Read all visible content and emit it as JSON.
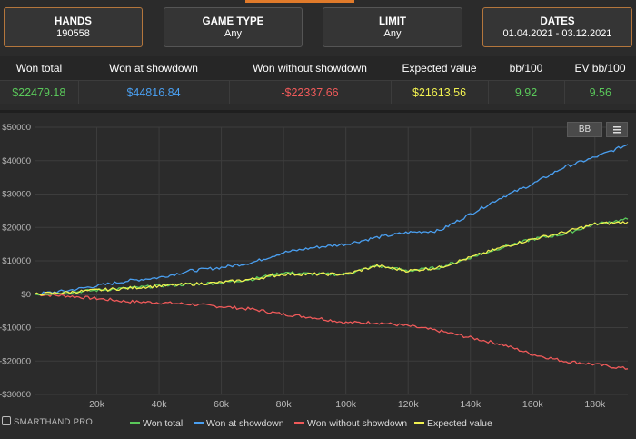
{
  "filters": [
    {
      "title": "HANDS",
      "value": "190558"
    },
    {
      "title": "GAME TYPE",
      "value": "Any"
    },
    {
      "title": "LIMIT",
      "value": "Any"
    },
    {
      "title": "DATES",
      "value": "01.04.2021 - 03.12.2021"
    }
  ],
  "stats": {
    "headers": [
      "Won total",
      "Won at showdown",
      "Won without showdown",
      "Expected value",
      "bb/100",
      "EV bb/100"
    ],
    "values": [
      "$22479.18",
      "$44816.84",
      "-$22337.66",
      "$21613.56",
      "9.92",
      "9.56"
    ],
    "colors": [
      "#5ac85a",
      "#4a9ff0",
      "#f05a5a",
      "#f0f050",
      "#5ac85a",
      "#5ac85a"
    ]
  },
  "toolbar": {
    "bb_label": "BB",
    "menu_icon": "hamburger-menu-icon"
  },
  "branding": "SMARTHAND.PRO",
  "chart_data": {
    "type": "line",
    "xlim": [
      0,
      190558
    ],
    "ylim": [
      -30000,
      50000
    ],
    "xticks": [
      20000,
      40000,
      60000,
      80000,
      100000,
      120000,
      140000,
      160000,
      180000
    ],
    "xtick_labels": [
      "20k",
      "40k",
      "60k",
      "80k",
      "100k",
      "120k",
      "140k",
      "160k",
      "180k"
    ],
    "yticks": [
      -30000,
      -20000,
      -10000,
      0,
      10000,
      20000,
      30000,
      40000,
      50000
    ],
    "ytick_labels": [
      "-$30000",
      "-$20000",
      "-$10000",
      "$0",
      "$10000",
      "$20000",
      "$30000",
      "$40000",
      "$50000"
    ],
    "x": [
      0,
      10000,
      20000,
      30000,
      40000,
      50000,
      60000,
      70000,
      80000,
      90000,
      100000,
      110000,
      120000,
      130000,
      140000,
      150000,
      160000,
      170000,
      180000,
      190558
    ],
    "series": [
      {
        "name": "Won total",
        "color": "#5ac85a",
        "values": [
          0,
          500,
          1200,
          1800,
          2500,
          3000,
          3500,
          4500,
          6500,
          6000,
          6000,
          8500,
          7000,
          8000,
          11000,
          14000,
          16500,
          18000,
          21000,
          22479
        ]
      },
      {
        "name": "Won at showdown",
        "color": "#4a9ff0",
        "values": [
          0,
          1000,
          2500,
          4000,
          5000,
          7000,
          8000,
          9500,
          12500,
          14000,
          15000,
          17000,
          18500,
          19000,
          24000,
          29000,
          33000,
          38000,
          41000,
          44817
        ]
      },
      {
        "name": "Won without showdown",
        "color": "#f05a5a",
        "values": [
          0,
          -500,
          -1300,
          -2200,
          -2500,
          -3000,
          -3700,
          -4500,
          -6000,
          -7000,
          -8500,
          -8500,
          -9500,
          -11000,
          -13000,
          -15000,
          -18000,
          -20000,
          -21000,
          -22338
        ]
      },
      {
        "name": "Expected value",
        "color": "#f0f050",
        "values": [
          0,
          500,
          1200,
          1800,
          2500,
          3000,
          3500,
          4500,
          6000,
          6000,
          6000,
          8500,
          7000,
          8000,
          11000,
          14000,
          16500,
          18500,
          21000,
          21614
        ]
      }
    ],
    "legend": "bottom",
    "grid": true
  }
}
